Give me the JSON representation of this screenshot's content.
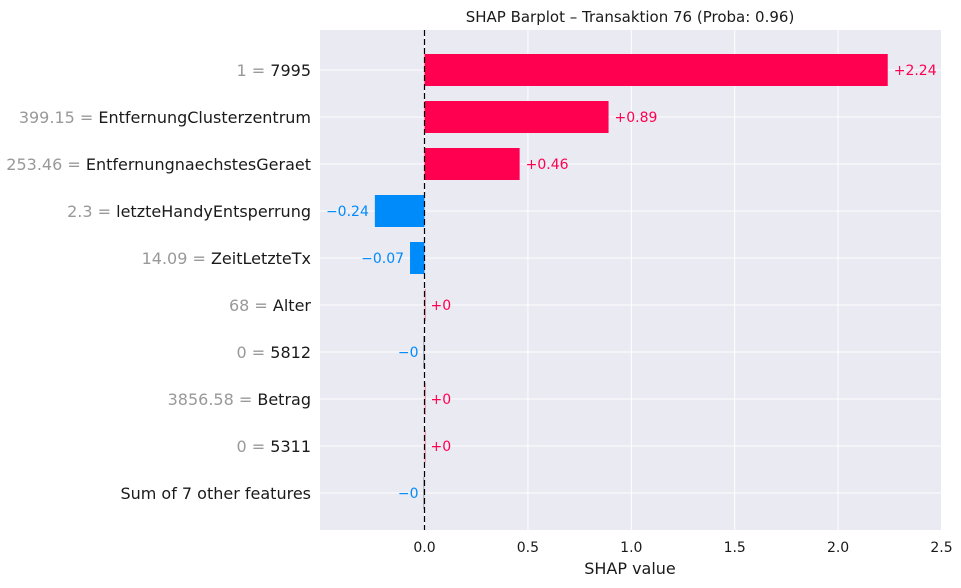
{
  "chart_data": {
    "type": "bar",
    "title": "SHAP Barplot – Transaktion 76 (Proba: 0.96)",
    "xlabel": "SHAP value",
    "ylabel": "",
    "xlim": [
      -0.5,
      2.5
    ],
    "xticks": [
      0.0,
      0.5,
      1.0,
      1.5,
      2.0,
      2.5
    ],
    "xtick_labels": [
      "0.0",
      "0.5",
      "1.0",
      "1.5",
      "2.0",
      "2.5"
    ],
    "grid": true,
    "legend": "none",
    "positive_color": "#ff0051",
    "negative_color": "#008bfb",
    "rows": [
      {
        "value_text": "1",
        "feature": "7995",
        "shap": 2.24,
        "label": "+2.24"
      },
      {
        "value_text": "399.15",
        "feature": "EntfernungClusterzentrum",
        "shap": 0.89,
        "label": "+0.89"
      },
      {
        "value_text": "253.46",
        "feature": "EntfernungnaechstesGeraet",
        "shap": 0.46,
        "label": "+0.46"
      },
      {
        "value_text": "2.3",
        "feature": "letzteHandyEntsperrung",
        "shap": -0.24,
        "label": "−0.24"
      },
      {
        "value_text": "14.09",
        "feature": "ZeitLetzteTx",
        "shap": -0.07,
        "label": "−0.07"
      },
      {
        "value_text": "68",
        "feature": "Alter",
        "shap": 0.001,
        "label": "+0"
      },
      {
        "value_text": "0",
        "feature": "5812",
        "shap": -0.001,
        "label": "−0"
      },
      {
        "value_text": "3856.58",
        "feature": "Betrag",
        "shap": 0.001,
        "label": "+0"
      },
      {
        "value_text": "0",
        "feature": "5311",
        "shap": 0.001,
        "label": "+0"
      },
      {
        "value_text": "",
        "feature": "Sum of 7 other features",
        "shap": -0.001,
        "label": "−0"
      }
    ]
  }
}
